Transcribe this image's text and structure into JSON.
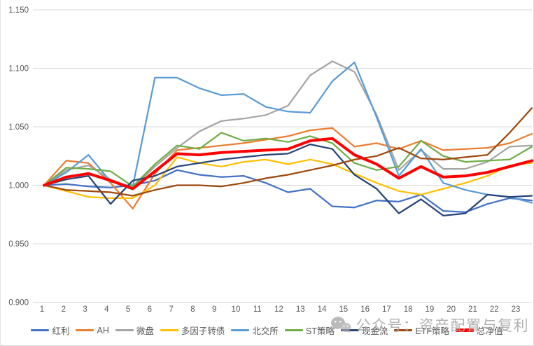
{
  "watermark": {
    "text": "公众号：资产配置与复利",
    "icon": "wechat-icon",
    "color": "#ababab"
  },
  "axis_color": "#595959",
  "grid_color": "#d9d9d9",
  "chart_data": {
    "type": "line",
    "x": [
      1,
      2,
      3,
      4,
      5,
      6,
      7,
      8,
      9,
      10,
      11,
      12,
      13,
      14,
      15,
      16,
      17,
      18,
      19,
      20,
      21,
      22,
      23
    ],
    "y_ticks": [
      "1.150",
      "1.100",
      "1.050",
      "1.000",
      "0.950",
      "0.900"
    ],
    "ylim": [
      0.9,
      1.15
    ],
    "grid": true,
    "legend_position": "bottom",
    "series": [
      {
        "name": "红利",
        "color": "#4472C4",
        "emphasis": false,
        "values": [
          1.0,
          1.001,
          0.999,
          0.998,
          1.0,
          1.004,
          1.013,
          1.009,
          1.007,
          1.008,
          1.002,
          0.994,
          0.997,
          0.982,
          0.981,
          0.987,
          0.986,
          0.992,
          0.978,
          0.977,
          0.984,
          0.989,
          0.987
        ]
      },
      {
        "name": "AH",
        "color": "#ED7D31",
        "emphasis": false,
        "values": [
          1.0,
          1.021,
          1.019,
          1.002,
          0.98,
          1.01,
          1.03,
          1.032,
          1.034,
          1.036,
          1.039,
          1.042,
          1.047,
          1.049,
          1.033,
          1.036,
          1.031,
          1.038,
          1.03,
          1.031,
          1.032,
          1.036,
          1.044
        ]
      },
      {
        "name": "微盘",
        "color": "#A5A5A5",
        "emphasis": false,
        "values": [
          1.0,
          1.013,
          1.017,
          1.005,
          0.998,
          1.016,
          1.032,
          1.046,
          1.055,
          1.057,
          1.06,
          1.068,
          1.094,
          1.106,
          1.097,
          1.06,
          1.013,
          1.03,
          1.014,
          1.014,
          1.02,
          1.033,
          1.034
        ]
      },
      {
        "name": "多因子转债",
        "color": "#FFC000",
        "emphasis": false,
        "values": [
          1.0,
          0.995,
          0.99,
          0.989,
          0.989,
          1.0,
          1.024,
          1.019,
          1.016,
          1.02,
          1.022,
          1.018,
          1.022,
          1.018,
          1.01,
          1.002,
          0.995,
          0.992,
          0.997,
          1.002,
          1.008,
          1.017,
          1.019
        ]
      },
      {
        "name": "北交所",
        "color": "#5B9BD5",
        "emphasis": false,
        "values": [
          1.0,
          1.011,
          1.026,
          1.003,
          0.999,
          1.092,
          1.092,
          1.083,
          1.077,
          1.078,
          1.067,
          1.063,
          1.062,
          1.089,
          1.105,
          1.058,
          1.008,
          1.031,
          1.002,
          0.996,
          0.992,
          0.99,
          0.985
        ]
      },
      {
        "name": "ST策略",
        "color": "#70AD47",
        "emphasis": false,
        "values": [
          1.0,
          1.015,
          1.014,
          1.012,
          0.999,
          1.018,
          1.034,
          1.031,
          1.045,
          1.038,
          1.04,
          1.037,
          1.042,
          1.036,
          1.019,
          1.013,
          1.016,
          1.038,
          1.025,
          1.02,
          1.021,
          1.022,
          1.033
        ]
      },
      {
        "name": "现金流",
        "color": "#264478",
        "emphasis": false,
        "values": [
          1.0,
          1.005,
          1.008,
          0.984,
          1.004,
          1.008,
          1.016,
          1.019,
          1.022,
          1.024,
          1.026,
          1.027,
          1.035,
          1.031,
          1.009,
          0.997,
          0.976,
          0.988,
          0.974,
          0.976,
          0.992,
          0.99,
          0.991
        ]
      },
      {
        "name": "ETF策略",
        "color": "#9E480E",
        "emphasis": false,
        "values": [
          1.0,
          0.996,
          0.995,
          0.994,
          0.991,
          0.996,
          1.0,
          1.0,
          0.999,
          1.002,
          1.006,
          1.009,
          1.013,
          1.017,
          1.022,
          1.025,
          1.032,
          1.023,
          1.022,
          1.024,
          1.026,
          1.045,
          1.066
        ]
      },
      {
        "name": "总净值",
        "color": "#FF0000",
        "emphasis": true,
        "values": [
          1.0,
          1.007,
          1.01,
          1.004,
          0.997,
          1.012,
          1.027,
          1.026,
          1.028,
          1.029,
          1.03,
          1.031,
          1.038,
          1.04,
          1.026,
          1.018,
          1.006,
          1.016,
          1.007,
          1.008,
          1.011,
          1.016,
          1.021
        ]
      }
    ]
  }
}
